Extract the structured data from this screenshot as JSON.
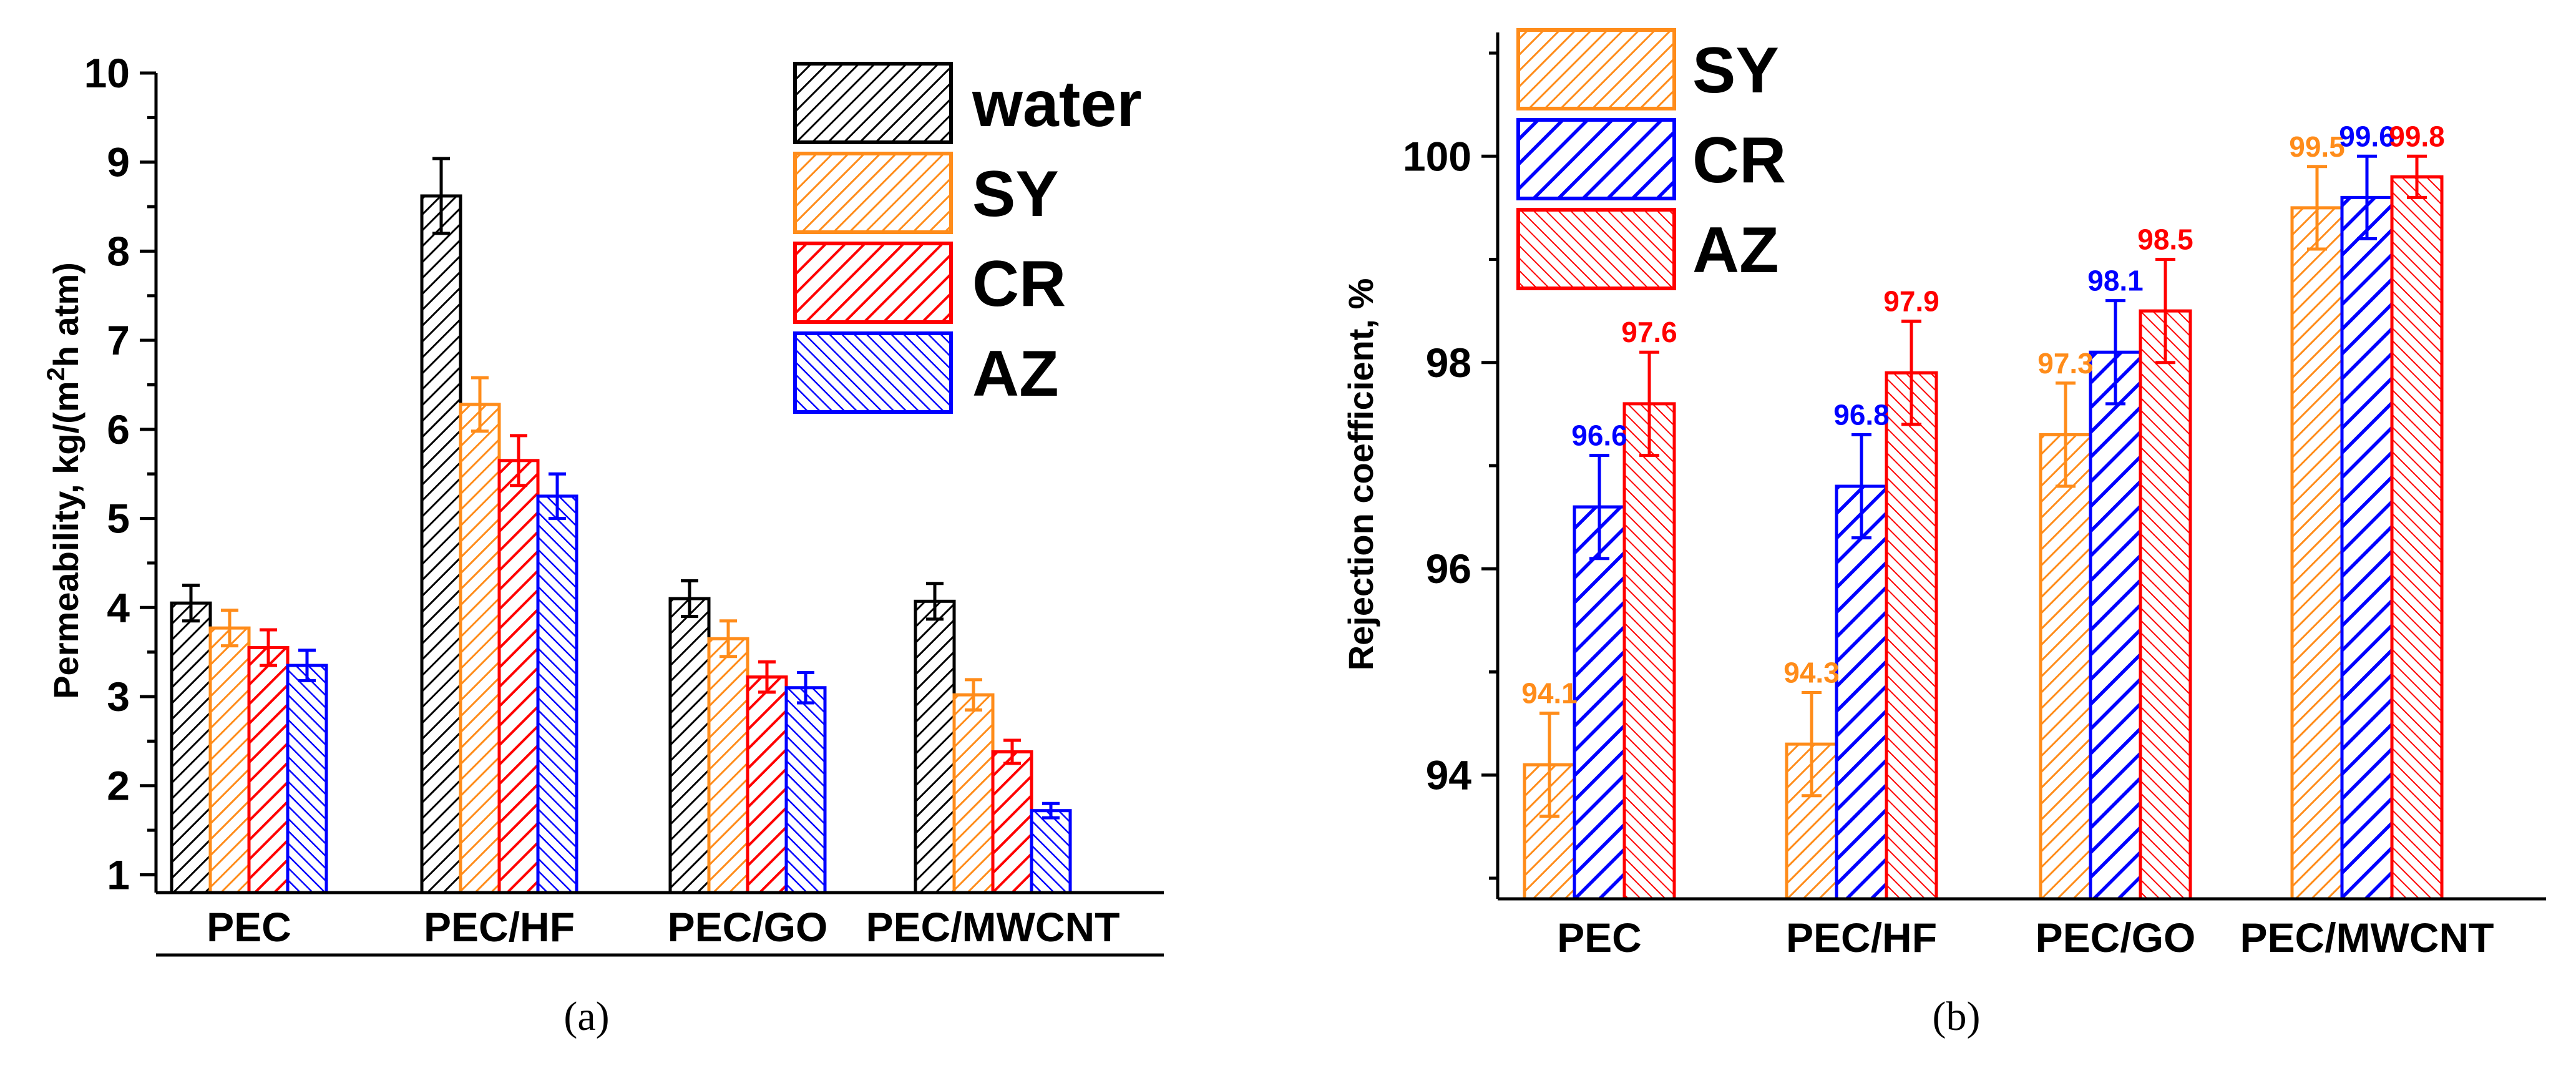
{
  "colors": {
    "water": "#000000",
    "orange": "#ff8c1a",
    "red": "#ff0000",
    "blue": "#0000ff"
  },
  "chart_data": [
    {
      "type": "bar",
      "panel_caption": "(a)",
      "title": "",
      "xlabel": "",
      "ylabel": "Permeability, kg/(m²h atm)",
      "ylim": [
        0.8,
        10
      ],
      "yticks": [
        1,
        2,
        3,
        4,
        5,
        6,
        7,
        8,
        9,
        10
      ],
      "categories": [
        "PEC",
        "PEC/HF",
        "PEC/GO",
        "PEC/MWCNT"
      ],
      "series": [
        {
          "name": "water",
          "color": "#000000",
          "values": [
            4.05,
            8.62,
            4.1,
            4.07
          ],
          "errors": [
            0.2,
            0.42,
            0.2,
            0.2
          ]
        },
        {
          "name": "SY",
          "color": "#ff8c1a",
          "values": [
            3.77,
            6.28,
            3.65,
            3.02
          ],
          "errors": [
            0.2,
            0.3,
            0.2,
            0.17
          ]
        },
        {
          "name": "CR",
          "color": "#ff0000",
          "values": [
            3.55,
            5.65,
            3.22,
            2.38
          ],
          "errors": [
            0.2,
            0.28,
            0.17,
            0.13
          ]
        },
        {
          "name": "AZ",
          "color": "#0000ff",
          "values": [
            3.35,
            5.25,
            3.1,
            1.72
          ],
          "errors": [
            0.17,
            0.25,
            0.17,
            0.08
          ]
        }
      ],
      "legend": {
        "position": "top-right",
        "entries": [
          "water",
          "SY",
          "CR",
          "AZ"
        ]
      }
    },
    {
      "type": "bar",
      "panel_caption": "(b)",
      "title": "",
      "xlabel": "",
      "ylabel": "Rejection coefficient, %",
      "ylim": [
        92.8,
        101.2
      ],
      "yticks": [
        94,
        96,
        98,
        100
      ],
      "categories": [
        "PEC",
        "PEC/HF",
        "PEC/GO",
        "PEC/MWCNT"
      ],
      "series": [
        {
          "name": "SY",
          "color": "#ff8c1a",
          "values": [
            94.1,
            94.3,
            97.3,
            99.5
          ],
          "errors": [
            0.5,
            0.5,
            0.5,
            0.4
          ],
          "labels": [
            "94.1",
            "94.3",
            "97.3",
            "99.5"
          ]
        },
        {
          "name": "CR",
          "color": "#0000ff",
          "values": [
            96.6,
            96.8,
            98.1,
            99.6
          ],
          "errors": [
            0.5,
            0.5,
            0.5,
            0.4
          ],
          "labels": [
            "96.6",
            "96.8",
            "98.1",
            "99.6"
          ]
        },
        {
          "name": "AZ",
          "color": "#ff0000",
          "values": [
            97.6,
            97.9,
            98.5,
            99.8
          ],
          "errors": [
            0.5,
            0.5,
            0.5,
            0.2
          ],
          "labels": [
            "97.6",
            "97.9",
            "98.5",
            "99.8"
          ]
        }
      ],
      "legend": {
        "position": "top-left",
        "entries": [
          "SY",
          "CR",
          "AZ"
        ]
      }
    }
  ]
}
